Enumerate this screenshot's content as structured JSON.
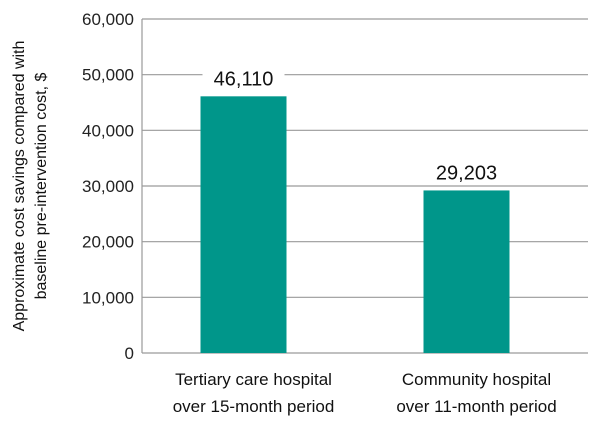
{
  "chart_data": {
    "type": "bar",
    "categories": [
      [
        "Tertiary care hospital",
        "over 15-month period"
      ],
      [
        "Community hospital",
        "over 11-month period"
      ]
    ],
    "values": [
      46110,
      29203
    ],
    "value_labels": [
      "46,110",
      "29,203"
    ],
    "ylabel_lines": [
      "Approximate cost savings compared with",
      "baseline pre-intervention cost, $"
    ],
    "ylim": [
      0,
      60000
    ],
    "yticks": [
      0,
      10000,
      20000,
      30000,
      40000,
      50000,
      60000
    ],
    "ytick_labels": [
      "0",
      "10,000",
      "20,000",
      "30,000",
      "40,000",
      "50,000",
      "60,000"
    ],
    "grid": true,
    "bar_color": "#00968a",
    "grid_color": "#9a9a9a"
  }
}
